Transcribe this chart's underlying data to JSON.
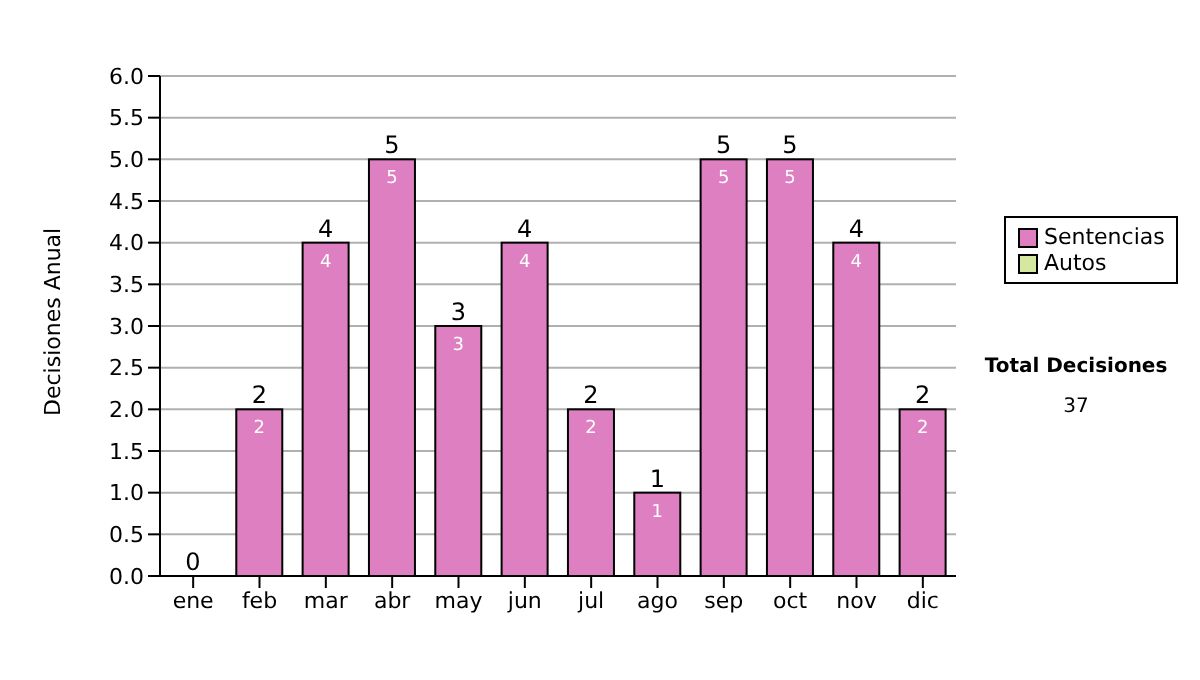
{
  "chart_data": {
    "type": "bar",
    "stacked": true,
    "ylabel": "Decisiones Anual",
    "categories": [
      "ene",
      "feb",
      "mar",
      "abr",
      "may",
      "jun",
      "jul",
      "ago",
      "sep",
      "oct",
      "nov",
      "dic"
    ],
    "series": [
      {
        "name": "Sentencias",
        "color": "#dd7fc0",
        "values": [
          0,
          2,
          4,
          5,
          3,
          4,
          2,
          1,
          5,
          5,
          4,
          2
        ],
        "value_labels": [
          null,
          "2",
          "4",
          "5",
          "3",
          "4",
          "2",
          "1",
          "5",
          "5",
          "4",
          "2"
        ]
      },
      {
        "name": "Autos",
        "color": "#d4e8a0",
        "values": [
          0,
          0,
          0,
          0,
          0,
          0,
          0,
          0,
          0,
          0,
          0,
          0
        ]
      }
    ],
    "totals": [
      "0",
      "2",
      "4",
      "5",
      "3",
      "4",
      "2",
      "1",
      "5",
      "5",
      "4",
      "2"
    ],
    "ylim": [
      0,
      6
    ],
    "yticks": [
      {
        "value": 0,
        "label": "0.0"
      },
      {
        "value": 0.5,
        "label": "0.5"
      },
      {
        "value": 1,
        "label": "1.0"
      },
      {
        "value": 1.5,
        "label": "1.5"
      },
      {
        "value": 2,
        "label": "2.0"
      },
      {
        "value": 2.5,
        "label": "2.5"
      },
      {
        "value": 3,
        "label": "3.0"
      },
      {
        "value": 3.5,
        "label": "3.5"
      },
      {
        "value": 4,
        "label": "4.0"
      },
      {
        "value": 4.5,
        "label": "4.5"
      },
      {
        "value": 5,
        "label": "5.0"
      },
      {
        "value": 5.5,
        "label": "5.5"
      },
      {
        "value": 6,
        "label": "6.0"
      }
    ],
    "grid": "y",
    "legend": "right",
    "annotations": [
      "Total Decisiones",
      "37"
    ]
  }
}
